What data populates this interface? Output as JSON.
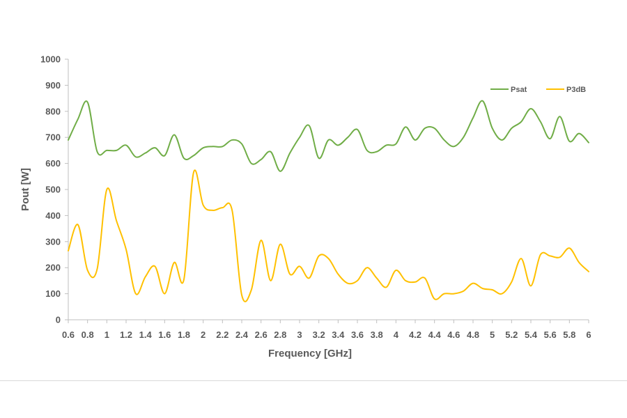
{
  "chart_data": {
    "type": "line",
    "xlabel": "Frequency [GHz]",
    "ylabel": "Pout  [W]",
    "xlim": [
      0.6,
      6
    ],
    "ylim": [
      0,
      1000
    ],
    "x_ticks": [
      "0.6",
      "0.8",
      "1",
      "1.2",
      "1.4",
      "1.6",
      "1.8",
      "2",
      "2.2",
      "2.4",
      "2.6",
      "2.8",
      "3",
      "3.2",
      "3.4",
      "3.6",
      "3.8",
      "4",
      "4.2",
      "4.4",
      "4.6",
      "4.8",
      "5",
      "5.2",
      "5.4",
      "5.6",
      "5.8",
      "6"
    ],
    "y_ticks": [
      "0",
      "100",
      "200",
      "300",
      "400",
      "500",
      "600",
      "700",
      "800",
      "900",
      "1000"
    ],
    "grid": false,
    "legend_position": "top-right",
    "series": [
      {
        "name": "Psat",
        "color": "#70ad47",
        "x": [
          0.6,
          0.7,
          0.8,
          0.9,
          1.0,
          1.1,
          1.2,
          1.3,
          1.4,
          1.5,
          1.6,
          1.7,
          1.8,
          1.9,
          2.0,
          2.1,
          2.2,
          2.3,
          2.4,
          2.5,
          2.6,
          2.7,
          2.8,
          2.9,
          3.0,
          3.1,
          3.2,
          3.3,
          3.4,
          3.5,
          3.6,
          3.7,
          3.8,
          3.9,
          4.0,
          4.1,
          4.2,
          4.3,
          4.4,
          4.5,
          4.6,
          4.7,
          4.8,
          4.9,
          5.0,
          5.1,
          5.2,
          5.3,
          5.4,
          5.5,
          5.6,
          5.7,
          5.8,
          5.9,
          6.0
        ],
        "values": [
          690,
          770,
          835,
          645,
          650,
          650,
          670,
          625,
          640,
          660,
          630,
          710,
          620,
          630,
          660,
          665,
          665,
          690,
          675,
          600,
          615,
          645,
          570,
          640,
          700,
          745,
          620,
          690,
          670,
          700,
          730,
          650,
          645,
          670,
          675,
          740,
          690,
          735,
          735,
          690,
          665,
          700,
          775,
          840,
          735,
          690,
          735,
          760,
          810,
          760,
          695,
          780,
          685,
          715,
          680
        ]
      },
      {
        "name": "P3dB",
        "color": "#ffc000",
        "x": [
          0.6,
          0.7,
          0.8,
          0.9,
          1.0,
          1.1,
          1.2,
          1.3,
          1.4,
          1.5,
          1.6,
          1.7,
          1.8,
          1.9,
          2.0,
          2.1,
          2.2,
          2.3,
          2.4,
          2.5,
          2.6,
          2.7,
          2.8,
          2.9,
          3.0,
          3.1,
          3.2,
          3.3,
          3.4,
          3.5,
          3.6,
          3.7,
          3.8,
          3.9,
          4.0,
          4.1,
          4.2,
          4.3,
          4.4,
          4.5,
          4.6,
          4.7,
          4.8,
          4.9,
          5.0,
          5.1,
          5.2,
          5.3,
          5.4,
          5.5,
          5.6,
          5.7,
          5.8,
          5.9,
          6.0
        ],
        "values": [
          265,
          365,
          190,
          195,
          500,
          380,
          270,
          100,
          165,
          205,
          100,
          220,
          155,
          565,
          440,
          420,
          430,
          420,
          95,
          115,
          305,
          150,
          290,
          175,
          205,
          160,
          245,
          235,
          175,
          140,
          150,
          200,
          160,
          125,
          190,
          150,
          145,
          160,
          80,
          100,
          100,
          110,
          140,
          120,
          115,
          100,
          145,
          235,
          130,
          250,
          245,
          240,
          275,
          220,
          185
        ]
      }
    ]
  }
}
